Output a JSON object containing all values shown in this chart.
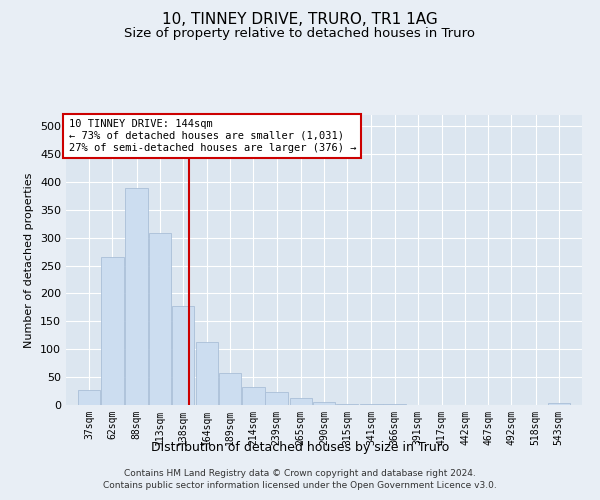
{
  "title": "10, TINNEY DRIVE, TRURO, TR1 1AG",
  "subtitle": "Size of property relative to detached houses in Truro",
  "xlabel": "Distribution of detached houses by size in Truro",
  "ylabel": "Number of detached properties",
  "footer_line1": "Contains HM Land Registry data © Crown copyright and database right 2024.",
  "footer_line2": "Contains public sector information licensed under the Open Government Licence v3.0.",
  "annotation_line1": "10 TINNEY DRIVE: 144sqm",
  "annotation_line2": "← 73% of detached houses are smaller (1,031)",
  "annotation_line3": "27% of semi-detached houses are larger (376) →",
  "bar_color": "#ccddf0",
  "bar_edge_color": "#aabfd8",
  "redline_x": 144,
  "redline_color": "#cc0000",
  "categories": [
    "37sqm",
    "62sqm",
    "88sqm",
    "113sqm",
    "138sqm",
    "164sqm",
    "189sqm",
    "214sqm",
    "239sqm",
    "265sqm",
    "290sqm",
    "315sqm",
    "341sqm",
    "366sqm",
    "391sqm",
    "417sqm",
    "442sqm",
    "467sqm",
    "492sqm",
    "518sqm",
    "543sqm"
  ],
  "values": [
    27,
    265,
    390,
    308,
    178,
    113,
    57,
    32,
    23,
    12,
    6,
    2,
    1,
    1,
    0,
    0,
    0,
    0,
    0,
    0,
    3
  ],
  "bin_width": 25,
  "bin_centers": [
    37,
    62,
    88,
    113,
    138,
    164,
    189,
    214,
    239,
    265,
    290,
    315,
    341,
    366,
    391,
    417,
    442,
    467,
    492,
    518,
    543
  ],
  "ylim": [
    0,
    520
  ],
  "yticks": [
    0,
    50,
    100,
    150,
    200,
    250,
    300,
    350,
    400,
    450,
    500
  ],
  "bg_color": "#e8eef5",
  "plot_bg_color": "#dce6f0",
  "grid_color": "#ffffff",
  "title_fontsize": 11,
  "subtitle_fontsize": 9.5
}
